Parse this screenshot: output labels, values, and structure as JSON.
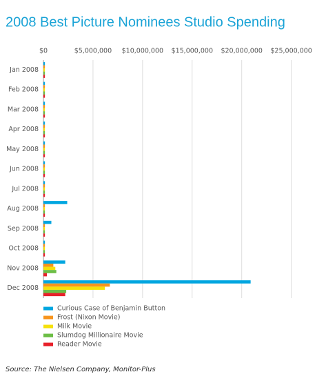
{
  "chart_data": {
    "type": "hbar",
    "title": "2008 Best Picture Nominees Studio Spending",
    "categories": [
      "Jan 2008",
      "Feb 2008",
      "Mar 2008",
      "Apr 2008",
      "May 2008",
      "Jun 2008",
      "Jul 2008",
      "Aug 2008",
      "Sep 2008",
      "Oct 2008",
      "Nov 2008",
      "Dec 2008"
    ],
    "series": [
      {
        "name": "Curious Case of Benjamin Button",
        "color": "#00a6e0",
        "values": [
          150000,
          150000,
          150000,
          150000,
          150000,
          150000,
          150000,
          2400000,
          800000,
          150000,
          2200000,
          20900000
        ]
      },
      {
        "name": "Frost (Nixon Movie)",
        "color": "#f7941d",
        "values": [
          150000,
          150000,
          150000,
          150000,
          150000,
          150000,
          150000,
          150000,
          150000,
          150000,
          1000000,
          6700000
        ]
      },
      {
        "name": "Milk Movie",
        "color": "#f5e10a",
        "values": [
          150000,
          150000,
          150000,
          150000,
          150000,
          150000,
          150000,
          150000,
          150000,
          150000,
          1200000,
          6200000
        ]
      },
      {
        "name": "Slumdog Millionaire Movie",
        "color": "#6cbe45",
        "values": [
          150000,
          150000,
          150000,
          150000,
          150000,
          150000,
          150000,
          150000,
          150000,
          150000,
          1300000,
          2300000
        ]
      },
      {
        "name": "Reader Movie",
        "color": "#e8202a",
        "values": [
          150000,
          150000,
          150000,
          150000,
          150000,
          150000,
          150000,
          150000,
          150000,
          150000,
          350000,
          2200000
        ]
      }
    ],
    "xlim": [
      0,
      26000000
    ],
    "xticks": [
      {
        "value": 0,
        "label": "$0"
      },
      {
        "value": 5000000,
        "label": "$5,000,000"
      },
      {
        "value": 10000000,
        "label": "$10,000,000"
      },
      {
        "value": 15000000,
        "label": "$15,000,000"
      },
      {
        "value": 20000000,
        "label": "$20,000,000"
      },
      {
        "value": 25000000,
        "label": "$25,000,000"
      }
    ],
    "grid": true,
    "source": "Source: The Nielsen Company, Monitor-Plus"
  }
}
